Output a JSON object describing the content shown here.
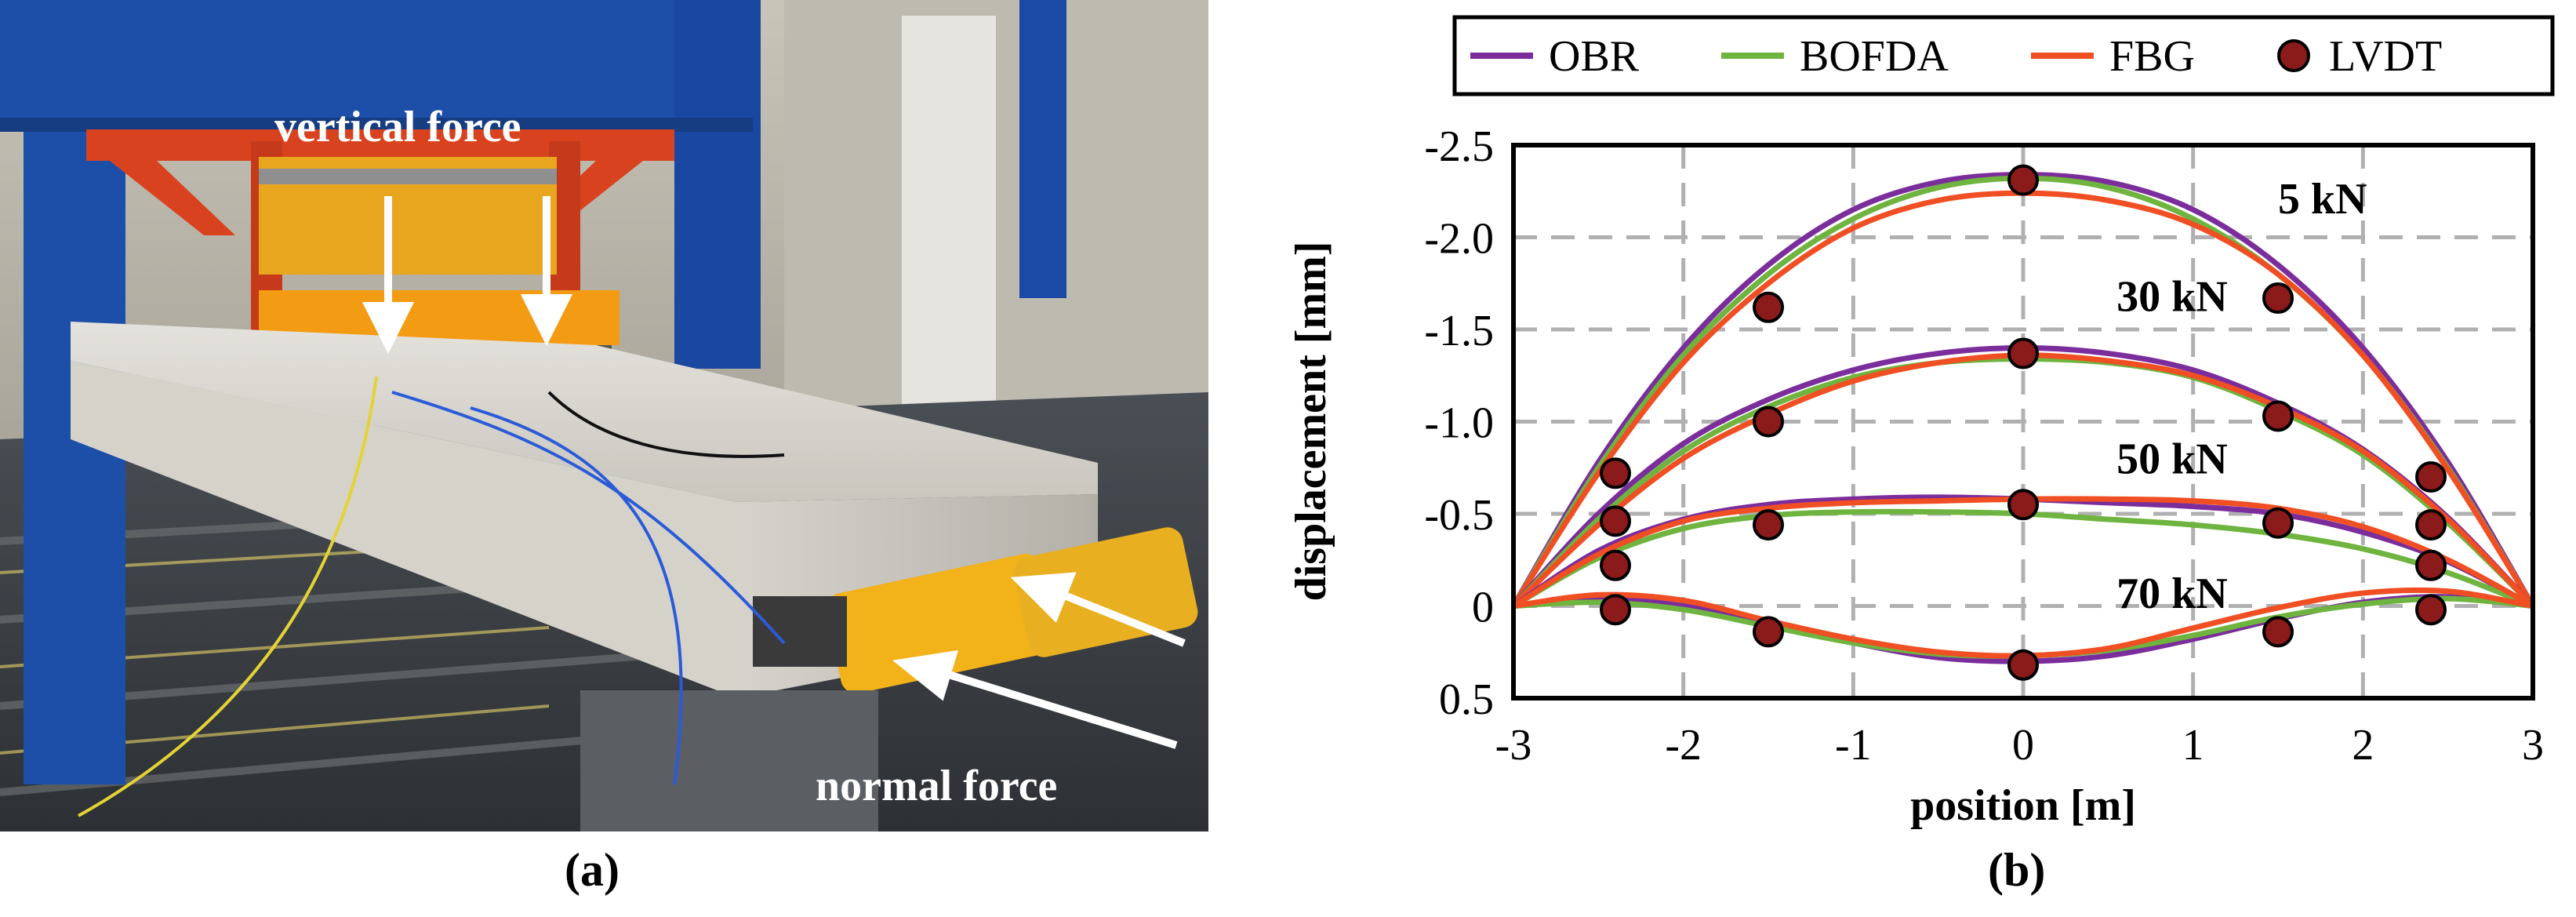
{
  "captions": {
    "a": "(a)",
    "b": "(b)"
  },
  "photo": {
    "annotations": {
      "vertical_force": "vertical force",
      "normal_force": "normal force"
    }
  },
  "colors": {
    "OBR": "#7B2D9C",
    "BOFDA": "#6EB43F",
    "FBG": "#F04E23",
    "LVDT_fill": "#8B1A1A",
    "grid": "#b0b0b0"
  },
  "chart_data": {
    "type": "line",
    "title": "",
    "xlabel": "position [m]",
    "ylabel": "displacement [mm]",
    "xlim": [
      -3,
      3
    ],
    "ylim": [
      0.5,
      -2.5
    ],
    "y_inverted": true,
    "grid": true,
    "legend_position": "top",
    "xticks": [
      -3,
      -2,
      -1,
      0,
      1,
      2,
      3
    ],
    "xtick_labels": [
      "-3",
      "-2",
      "-1",
      "0",
      "1",
      "2",
      "3"
    ],
    "yticks": [
      -2.5,
      -2.0,
      -1.5,
      -1.0,
      -0.5,
      0,
      0.5
    ],
    "ytick_labels": [
      "-2.5",
      "-2.0",
      "-1.5",
      "-1.0",
      "-0.5",
      "0",
      "0.5"
    ],
    "legend": [
      "OBR",
      "BOFDA",
      "FBG",
      "LVDT"
    ],
    "load_labels": [
      "5 kN",
      "30 kN",
      "50 kN",
      "70 kN"
    ],
    "load_label_positions": [
      [
        1.5,
        -2.13
      ],
      [
        0.55,
        -1.6
      ],
      [
        0.55,
        -0.72
      ],
      [
        0.55,
        0.01
      ]
    ],
    "x": [
      -3.0,
      -2.5,
      -2.0,
      -1.5,
      -1.0,
      -0.5,
      0.0,
      0.5,
      1.0,
      1.5,
      2.0,
      2.5,
      3.0
    ],
    "series": [
      {
        "name": "OBR",
        "load": "5 kN",
        "values": [
          0.0,
          -0.78,
          -1.4,
          -1.85,
          -2.15,
          -2.3,
          -2.34,
          -2.3,
          -2.15,
          -1.85,
          -1.4,
          -0.78,
          0.0
        ]
      },
      {
        "name": "BOFDA",
        "load": "5 kN",
        "values": [
          0.0,
          -0.75,
          -1.36,
          -1.8,
          -2.1,
          -2.27,
          -2.32,
          -2.27,
          -2.1,
          -1.8,
          -1.36,
          -0.75,
          0.0
        ]
      },
      {
        "name": "FBG",
        "load": "5 kN",
        "values": [
          0.0,
          -0.72,
          -1.32,
          -1.75,
          -2.05,
          -2.2,
          -2.24,
          -2.2,
          -2.07,
          -1.8,
          -1.36,
          -0.74,
          0.0
        ]
      },
      {
        "name": "OBR",
        "load": "30 kN",
        "values": [
          0.0,
          -0.5,
          -0.88,
          -1.12,
          -1.28,
          -1.37,
          -1.4,
          -1.37,
          -1.28,
          -1.1,
          -0.85,
          -0.48,
          0.0
        ]
      },
      {
        "name": "BOFDA",
        "load": "30 kN",
        "values": [
          0.0,
          -0.47,
          -0.84,
          -1.08,
          -1.24,
          -1.32,
          -1.34,
          -1.32,
          -1.24,
          -1.06,
          -0.82,
          -0.45,
          0.0
        ]
      },
      {
        "name": "FBG",
        "load": "30 kN",
        "values": [
          0.0,
          -0.44,
          -0.8,
          -1.04,
          -1.22,
          -1.32,
          -1.36,
          -1.33,
          -1.25,
          -1.08,
          -0.84,
          -0.47,
          0.0
        ]
      },
      {
        "name": "OBR",
        "load": "50 kN",
        "values": [
          0.0,
          -0.3,
          -0.47,
          -0.55,
          -0.58,
          -0.59,
          -0.58,
          -0.56,
          -0.54,
          -0.5,
          -0.4,
          -0.24,
          0.0
        ]
      },
      {
        "name": "BOFDA",
        "load": "50 kN",
        "values": [
          0.0,
          -0.26,
          -0.42,
          -0.49,
          -0.51,
          -0.51,
          -0.5,
          -0.47,
          -0.44,
          -0.39,
          -0.31,
          -0.18,
          0.0
        ]
      },
      {
        "name": "FBG",
        "load": "50 kN",
        "values": [
          0.0,
          -0.28,
          -0.46,
          -0.53,
          -0.56,
          -0.57,
          -0.58,
          -0.58,
          -0.57,
          -0.53,
          -0.43,
          -0.25,
          0.0
        ]
      },
      {
        "name": "OBR",
        "load": "70 kN",
        "values": [
          0.0,
          -0.04,
          0.0,
          0.1,
          0.2,
          0.28,
          0.3,
          0.27,
          0.18,
          0.07,
          -0.02,
          -0.05,
          0.0
        ]
      },
      {
        "name": "BOFDA",
        "load": "70 kN",
        "values": [
          0.0,
          -0.02,
          0.02,
          0.11,
          0.2,
          0.26,
          0.27,
          0.24,
          0.16,
          0.06,
          -0.01,
          -0.04,
          0.0
        ]
      },
      {
        "name": "FBG",
        "load": "70 kN",
        "values": [
          0.0,
          -0.06,
          -0.03,
          0.08,
          0.18,
          0.25,
          0.27,
          0.23,
          0.12,
          0.01,
          -0.07,
          -0.08,
          0.0
        ]
      }
    ],
    "lvdt": {
      "name": "LVDT",
      "x": [
        -2.4,
        -1.5,
        0.0,
        1.5,
        2.4
      ],
      "loads": [
        {
          "load": "5 kN",
          "values": [
            -0.72,
            -1.62,
            -2.31,
            -1.67,
            -0.7
          ]
        },
        {
          "load": "30 kN",
          "values": [
            -0.46,
            -1.0,
            -1.37,
            -1.03,
            -0.44
          ]
        },
        {
          "load": "50 kN",
          "values": [
            -0.22,
            -0.44,
            -0.55,
            -0.45,
            -0.22
          ]
        },
        {
          "load": "70 kN",
          "values": [
            0.02,
            0.14,
            0.32,
            0.14,
            0.02
          ]
        }
      ]
    }
  }
}
